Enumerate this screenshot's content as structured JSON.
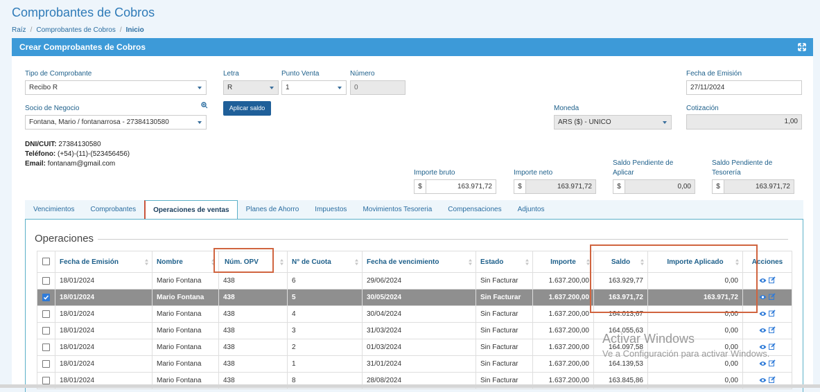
{
  "header": {
    "title": "Comprobantes de Cobros",
    "breadcrumb": [
      "Raíz",
      "Comprobantes de Cobros",
      "Inicio"
    ]
  },
  "panel": {
    "title": "Crear Comprobantes de Cobros"
  },
  "form": {
    "tipo_label": "Tipo de Comprobante",
    "tipo_value": "Recibo R",
    "letra_label": "Letra",
    "letra_value": "R",
    "punto_label": "Punto Venta",
    "punto_value": "1",
    "numero_label": "Número",
    "numero_value": "0",
    "fecha_label": "Fecha de Emisión",
    "fecha_value": "27/11/2024",
    "socio_label": "Socio de Negocio",
    "socio_value": "Fontana, Mario / fontanarrosa - 27384130580",
    "aplicar_button": "Aplicar saldo",
    "moneda_label": "Moneda",
    "moneda_value": "ARS ($) - UNICO",
    "cotizacion_label": "Cotización",
    "cotizacion_value": "1,00"
  },
  "contact": [
    {
      "label": "DNI/CUIT:",
      "value": "27384130580"
    },
    {
      "label": "Teléfono:",
      "value": "(+54)-(11)-(523456456)"
    },
    {
      "label": "Email:",
      "value": "fontanam@gmail.com"
    }
  ],
  "totals": [
    {
      "label": "Importe bruto",
      "currency": "$",
      "value": "163.971,72"
    },
    {
      "label": "Importe neto",
      "currency": "$",
      "value": "163.971,72"
    },
    {
      "label": "Saldo Pendiente de Aplicar",
      "currency": "$",
      "value": "0,00"
    },
    {
      "label": "Saldo Pendiente de Tesorería",
      "currency": "$",
      "value": "163.971,72"
    }
  ],
  "tabs": {
    "active": 2,
    "items": [
      "Vencimientos",
      "Comprobantes",
      "Operaciones de ventas",
      "Planes de Ahorro",
      "Impuestos",
      "Movimientos Tesoreria",
      "Compensaciones",
      "Adjuntos"
    ]
  },
  "section_title": "Operaciones",
  "table": {
    "columns": [
      "Fecha de Emisión",
      "Nombre",
      "Núm. OPV",
      "N° de Cuota",
      "Fecha de vencimiento",
      "Estado",
      "Importe",
      "Saldo",
      "Importe Aplicado",
      "Acciones"
    ],
    "selected_row": 1,
    "rows": [
      [
        "18/01/2024",
        "Mario Fontana",
        "438",
        "6",
        "29/06/2024",
        "Sin Facturar",
        "1.637.200,00",
        "163.929,77",
        "0,00"
      ],
      [
        "18/01/2024",
        "Mario Fontana",
        "438",
        "5",
        "30/05/2024",
        "Sin Facturar",
        "1.637.200,00",
        "163.971,72",
        "163.971,72"
      ],
      [
        "18/01/2024",
        "Mario Fontana",
        "438",
        "4",
        "30/04/2024",
        "Sin Facturar",
        "1.637.200,00",
        "164.013,67",
        "0,00"
      ],
      [
        "18/01/2024",
        "Mario Fontana",
        "438",
        "3",
        "31/03/2024",
        "Sin Facturar",
        "1.637.200,00",
        "164.055,63",
        "0,00"
      ],
      [
        "18/01/2024",
        "Mario Fontana",
        "438",
        "2",
        "01/03/2024",
        "Sin Facturar",
        "1.637.200,00",
        "164.097,58",
        "0,00"
      ],
      [
        "18/01/2024",
        "Mario Fontana",
        "438",
        "1",
        "31/01/2024",
        "Sin Facturar",
        "1.637.200,00",
        "164.139,53",
        "0,00"
      ],
      [
        "18/01/2024",
        "Mario Fontana",
        "438",
        "8",
        "28/08/2024",
        "Sin Facturar",
        "1.637.200,00",
        "163.845,86",
        "0,00"
      ]
    ]
  },
  "watermark": {
    "title": "Activar Windows",
    "subtitle": "Ve a Configuración para activar Windows."
  }
}
